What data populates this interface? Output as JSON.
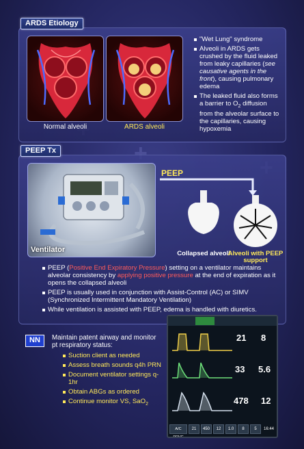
{
  "etiology": {
    "tag": "ARDS Etiology",
    "normal_label": "Normal alveoli",
    "ards_label": "ARDS alveoli",
    "bullet1": "\"Wet Lung\" syndrome",
    "bullet2_a": "Alveoli in ARDS gets crushed by the fluid leaked from leaky capillaries (",
    "bullet2_i": "see causative agents in the front",
    "bullet2_b": "), causing pulmonary edema",
    "bullet3_a": "The leaked fluid also forms a barrier to O",
    "bullet3_sub": "2",
    "bullet3_b": " diffusion from the alveolar surface to the capillaries, causing hypoxemia"
  },
  "peep": {
    "tag": "PEEP Tx",
    "peep_label": "PEEP",
    "ventilator_label": "Ventilator",
    "collapsed_label": "Collapsed alveoli",
    "with_peep_label": "Alveoli with PEEP support",
    "b1_a": "PEEP (",
    "b1_red1": "Positive End Expiratory Pressure",
    "b1_b": ") setting on a ventilator maintains alveolar consistency by ",
    "b1_red2": "applying positive pressure",
    "b1_c": " at the end of expiration as it opens the collapsed alveoli",
    "b2": "PEEP is usually used in conjunction with Assist-Control (AC) or SIMV (Synchronized Intermittent Mandatory Ventilation)",
    "b3": "While ventilation is assisted with PEEP, edema is handled with diuretics."
  },
  "nn": {
    "badge": "NN",
    "intro": "Maintain patent airway and monitor pt respiratory status:",
    "items": [
      "Suction client as needed",
      "Assess breath sounds q4h PRN",
      "Document ventilator settings q-1hr",
      "Obtain ABGs as ordered"
    ],
    "last_a": "Continue monitor VS, SaO",
    "last_sub": "2"
  },
  "monitor": {
    "values": [
      "21",
      "8",
      "33",
      "5.6",
      "478",
      "12"
    ],
    "mode": "A/C PRVC",
    "bottom": [
      "21",
      "450",
      "12",
      "1.0",
      "8",
      "5"
    ],
    "time": "16:44"
  },
  "colors": {
    "accent_yellow": "#ffe95a",
    "accent_red": "#ff5b5b",
    "badge_blue": "#1f3fcf"
  }
}
